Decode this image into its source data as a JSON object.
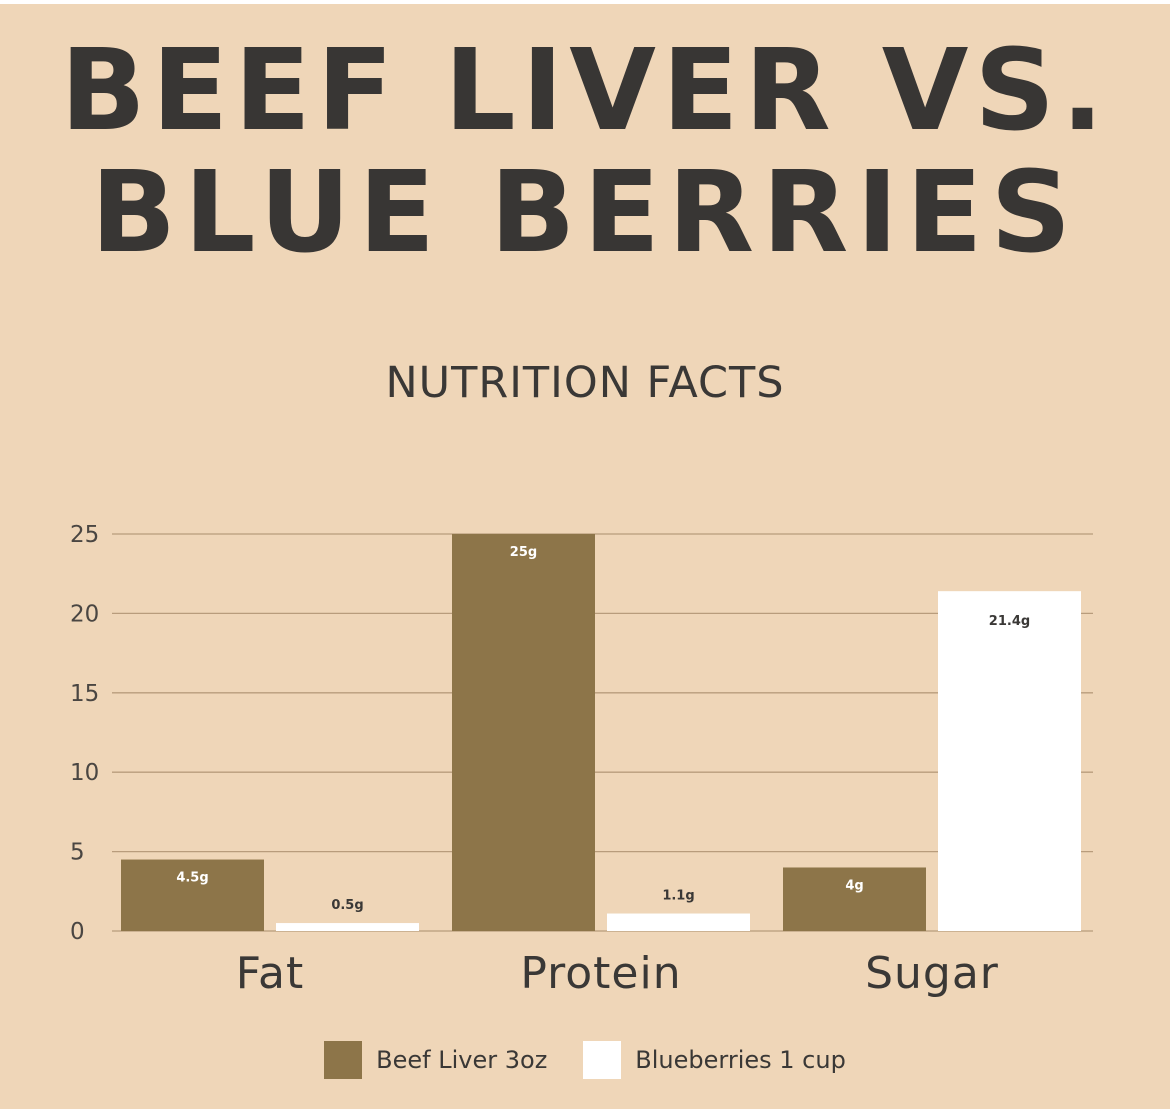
{
  "title_line1": "BEEF LIVER VS.",
  "title_line2": "BLUE BERRIES",
  "subtitle": "NUTRITION FACTS",
  "colors": {
    "background": "#efd6b8",
    "title": "#383634",
    "gridline": "#b89c7c",
    "beef_liver": "#8d7549",
    "blueberries": "#ffffff"
  },
  "chart_data": {
    "type": "bar",
    "title": "NUTRITION FACTS",
    "categories": [
      "Fat",
      "Protein",
      "Sugar"
    ],
    "series": [
      {
        "name": "Beef Liver 3oz",
        "values": [
          4.5,
          25,
          4
        ],
        "labels": [
          "4.5g",
          "25g",
          "4g"
        ]
      },
      {
        "name": "Blueberries 1 cup",
        "values": [
          0.5,
          1.1,
          21.4
        ],
        "labels": [
          "0.5g",
          "1.1g",
          "21.4g"
        ]
      }
    ],
    "y_ticks": [
      0,
      5,
      10,
      15,
      20,
      25
    ],
    "ylim": [
      0,
      25
    ],
    "grid": true,
    "legend": "bottom"
  }
}
